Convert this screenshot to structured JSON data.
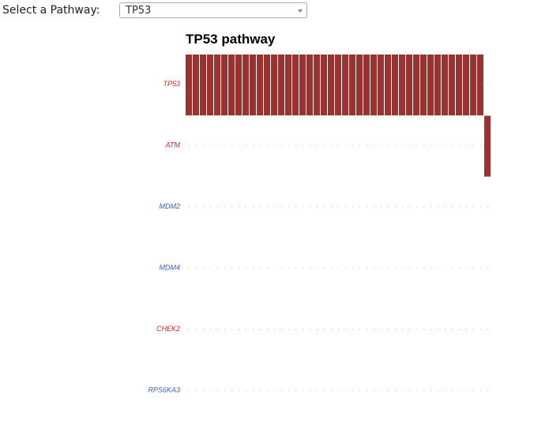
{
  "selector": {
    "label": "Select a Pathway:",
    "selected": "TP53"
  },
  "colors": {
    "tumor_suppressor": "#d62728",
    "oncogene": "#3a5fcd",
    "mutation": "#9b3230",
    "empty_dot": "#bbbbbb"
  },
  "chart_data": {
    "type": "heatmap",
    "title": "TP53 pathway",
    "num_samples": 43,
    "genes": [
      {
        "name": "TP53",
        "role": "tumor_suppressor",
        "altered_samples": [
          0,
          1,
          2,
          3,
          4,
          5,
          6,
          7,
          8,
          9,
          10,
          11,
          12,
          13,
          14,
          15,
          16,
          17,
          18,
          19,
          20,
          21,
          22,
          23,
          24,
          25,
          26,
          27,
          28,
          29,
          30,
          31,
          32,
          33,
          34,
          35,
          36,
          37,
          38,
          39,
          40,
          41
        ]
      },
      {
        "name": "ATM",
        "role": "tumor_suppressor",
        "altered_samples": [
          42
        ]
      },
      {
        "name": "MDM2",
        "role": "oncogene",
        "altered_samples": []
      },
      {
        "name": "MDM4",
        "role": "oncogene",
        "altered_samples": []
      },
      {
        "name": "CHEK2",
        "role": "tumor_suppressor",
        "altered_samples": []
      },
      {
        "name": "RPS6KA3",
        "role": "oncogene",
        "altered_samples": []
      }
    ]
  }
}
